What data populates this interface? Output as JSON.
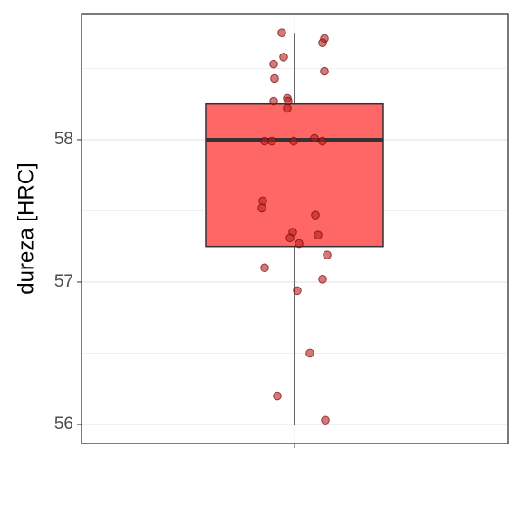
{
  "chart_data": {
    "type": "box",
    "y_label": "dureza [HRC]",
    "box": {
      "whisker_low": 56.0,
      "q1": 57.25,
      "median": 58.0,
      "q3": 58.25,
      "whisker_high": 58.75,
      "color": "#ff6666"
    },
    "points": {
      "color": "#b22222",
      "values": [
        58.75,
        58.71,
        58.68,
        58.58,
        58.53,
        58.48,
        58.43,
        58.29,
        58.27,
        58.27,
        58.22,
        58.01,
        57.99,
        57.99,
        57.99,
        57.99,
        57.57,
        57.52,
        57.47,
        57.35,
        57.33,
        57.31,
        57.27,
        57.19,
        57.1,
        57.02,
        56.94,
        56.5,
        56.2,
        56.03
      ]
    },
    "ylim": [
      55.866,
      58.885
    ],
    "yticks": [
      56,
      57,
      58
    ],
    "y_minor_grid": [
      56.5,
      57.5,
      58.5
    ],
    "grid": true
  }
}
